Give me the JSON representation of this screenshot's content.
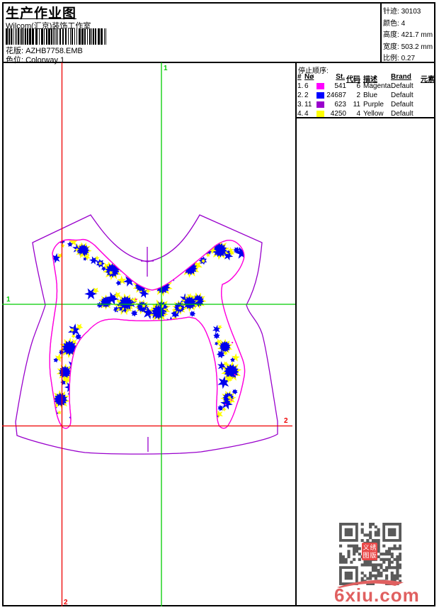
{
  "header": {
    "title": "生产作业图",
    "studio": "Wilcom(汇京)装饰工作室",
    "pattern_label": "花版:",
    "pattern_value": "AZHB7758.EMB",
    "colorway_label": "色位:",
    "colorway_value": "Colorway 1"
  },
  "stats": {
    "rows": [
      {
        "label": "针迹:",
        "value": "30103"
      },
      {
        "label": "颜色:",
        "value": "4"
      },
      {
        "label": "高度:",
        "value": "421.7 mm"
      },
      {
        "label": "宽度:",
        "value": "503.2 mm"
      },
      {
        "label": "比例:",
        "value": "0.27"
      }
    ]
  },
  "color_table": {
    "title": "停止顺序:",
    "columns": [
      "#",
      "Nø",
      "St.",
      "代码",
      "描述",
      "Brand",
      "元素"
    ],
    "rows": [
      {
        "seq": "1.",
        "needle": "6",
        "swatch": "#ff00ff",
        "stitches": "541",
        "code": "6",
        "desc": "Magenta",
        "brand": "Default",
        "element": ""
      },
      {
        "seq": "2.",
        "needle": "2",
        "swatch": "#0000ff",
        "stitches": "24687",
        "code": "2",
        "desc": "Blue",
        "brand": "Default",
        "element": ""
      },
      {
        "seq": "3.",
        "needle": "11",
        "swatch": "#9900cc",
        "stitches": "623",
        "code": "11",
        "desc": "Purple",
        "brand": "Default",
        "element": ""
      },
      {
        "seq": "4.",
        "needle": "4",
        "swatch": "#ffff00",
        "stitches": "4250",
        "code": "4",
        "desc": "Yellow",
        "brand": "Default",
        "element": ""
      }
    ]
  },
  "guides": {
    "start_label": "1",
    "end_label": "2",
    "start_color": "#00cc00",
    "end_color": "#ee0000"
  },
  "design_colors": {
    "outline_magenta": "#ff00dd",
    "garment_purple": "#9900cc",
    "flower_blue": "#0000ee",
    "accent_yellow": "#ffff00",
    "dot_magenta": "#ff00cc"
  },
  "watermark": {
    "site": "6xiu.com",
    "seal_chars": [
      "义",
      "绣",
      "图",
      "版"
    ],
    "color": "#e06060",
    "qr_color": "#5a5a5a"
  }
}
